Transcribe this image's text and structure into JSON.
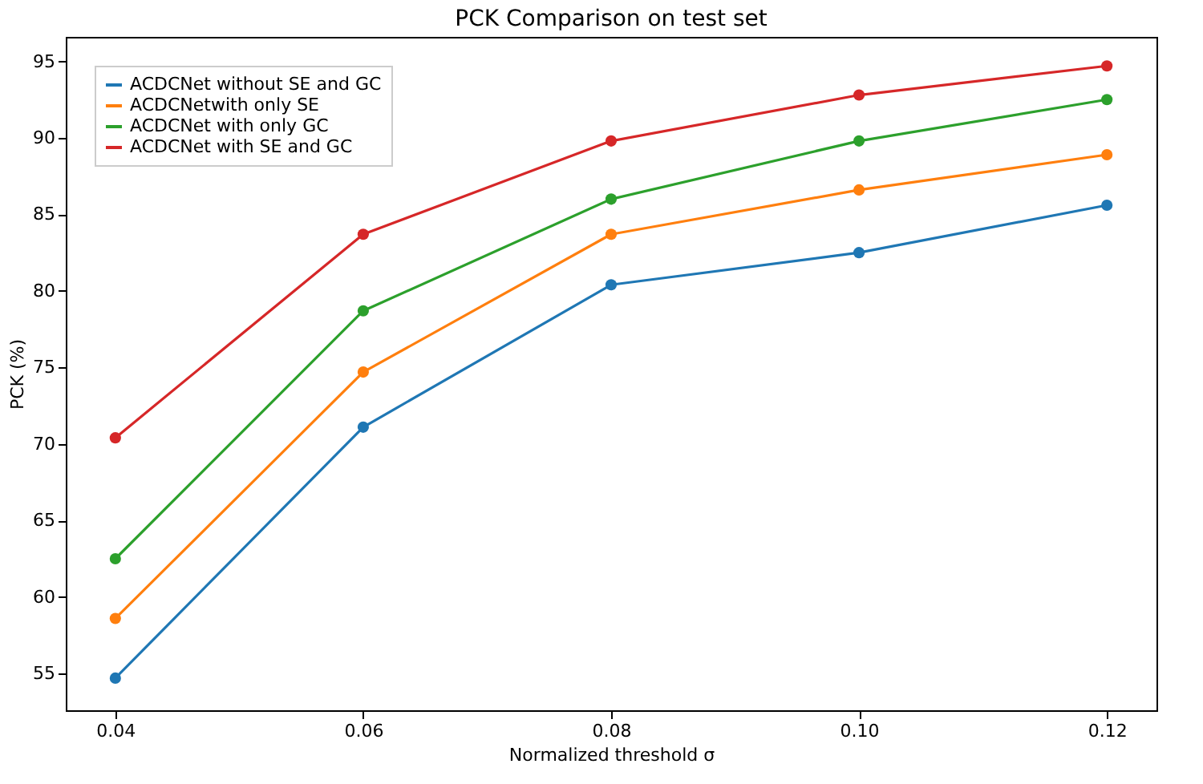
{
  "chart_data": {
    "type": "line",
    "title": "PCK Comparison on test set",
    "xlabel": "Normalized threshold σ",
    "ylabel": "PCK (%)",
    "x": [
      0.04,
      0.06,
      0.08,
      0.1,
      0.12
    ],
    "series": [
      {
        "name": "ACDCNet without SE and GC",
        "color": "#1f77b4",
        "values": [
          54.7,
          71.1,
          80.4,
          82.5,
          85.6
        ]
      },
      {
        "name": "ACDCNetwith only SE",
        "color": "#ff7f0e",
        "values": [
          58.6,
          74.7,
          83.7,
          86.6,
          88.9
        ]
      },
      {
        "name": "ACDCNet with only GC",
        "color": "#2ca02c",
        "values": [
          62.5,
          78.7,
          86.0,
          89.8,
          92.5
        ]
      },
      {
        "name": "ACDCNet with SE and GC",
        "color": "#d62728",
        "values": [
          70.4,
          83.7,
          89.8,
          92.8,
          94.7
        ]
      }
    ],
    "xlim": [
      0.036,
      0.124
    ],
    "xticks": [
      0.04,
      0.06,
      0.08,
      {
        "value": 0.1,
        "label": "0.10"
      },
      0.12
    ],
    "ylim": [
      52.6,
      96.6
    ],
    "yticks": [
      55,
      60,
      65,
      70,
      75,
      80,
      85,
      90,
      95
    ],
    "legend": "top left",
    "marker": "circle",
    "line_style": "solid",
    "grid": false
  }
}
